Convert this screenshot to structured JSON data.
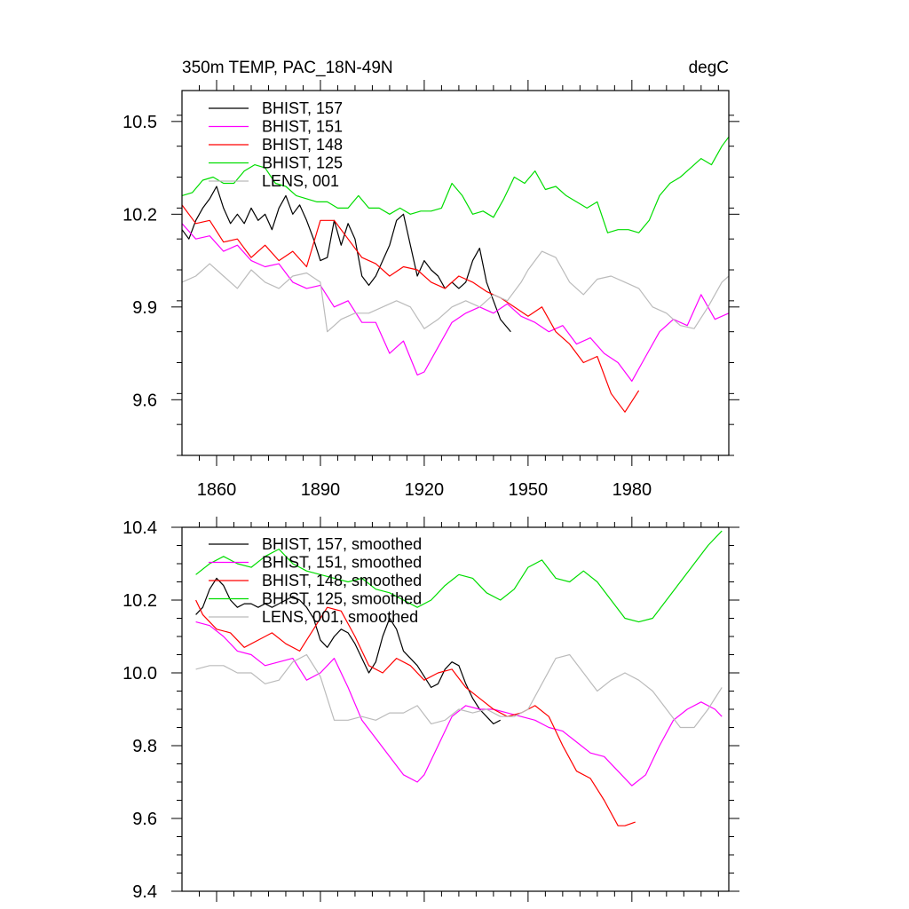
{
  "chart_data": [
    {
      "type": "line",
      "title": "350m TEMP, PAC_18N-49N",
      "title_right": "degC",
      "xlim": [
        1850,
        2008
      ],
      "ylim": [
        9.42,
        10.6
      ],
      "xticks": [
        1860,
        1890,
        1920,
        1950,
        1980
      ],
      "xtick_labels": [
        "1860",
        "1890",
        "1920",
        "1950",
        "1980"
      ],
      "yticks": [
        9.6,
        9.9,
        10.2,
        10.5
      ],
      "ytick_labels": [
        "9.6",
        "9.9",
        "10.2",
        "10.5"
      ],
      "legend_position": "top-left",
      "series": [
        {
          "name": "BHIST, 157",
          "color": "#000000",
          "x": [
            1850,
            1852,
            1854,
            1856,
            1858,
            1860,
            1862,
            1864,
            1866,
            1868,
            1870,
            1872,
            1874,
            1876,
            1878,
            1880,
            1882,
            1884,
            1886,
            1888,
            1890,
            1892,
            1894,
            1896,
            1898,
            1900,
            1902,
            1904,
            1906,
            1908,
            1910,
            1912,
            1914,
            1916,
            1918,
            1920,
            1922,
            1924,
            1926,
            1928,
            1930,
            1932,
            1934,
            1936,
            1938,
            1940,
            1942,
            1945
          ],
          "y": [
            10.15,
            10.12,
            10.18,
            10.22,
            10.25,
            10.29,
            10.22,
            10.17,
            10.2,
            10.17,
            10.22,
            10.18,
            10.2,
            10.15,
            10.22,
            10.26,
            10.2,
            10.23,
            10.18,
            10.12,
            10.05,
            10.06,
            10.18,
            10.1,
            10.17,
            10.12,
            10.0,
            9.97,
            10.0,
            10.05,
            10.1,
            10.18,
            10.2,
            10.1,
            10.0,
            10.05,
            10.02,
            10.0,
            9.96,
            9.98,
            9.96,
            9.98,
            10.05,
            10.09,
            9.98,
            9.92,
            9.86,
            9.82
          ]
        },
        {
          "name": "BHIST, 151",
          "color": "#ff00ff",
          "x": [
            1850,
            1854,
            1858,
            1862,
            1866,
            1870,
            1874,
            1878,
            1882,
            1886,
            1890,
            1894,
            1898,
            1902,
            1906,
            1910,
            1914,
            1918,
            1920,
            1924,
            1928,
            1932,
            1936,
            1940,
            1944,
            1948,
            1952,
            1956,
            1960,
            1964,
            1968,
            1972,
            1976,
            1980,
            1984,
            1988,
            1992,
            1996,
            2000,
            2004,
            2008
          ],
          "y": [
            10.17,
            10.12,
            10.13,
            10.08,
            10.1,
            10.05,
            10.03,
            10.04,
            9.98,
            9.96,
            9.97,
            9.9,
            9.92,
            9.85,
            9.85,
            9.75,
            9.79,
            9.68,
            9.69,
            9.77,
            9.85,
            9.88,
            9.9,
            9.88,
            9.91,
            9.87,
            9.85,
            9.82,
            9.84,
            9.78,
            9.8,
            9.75,
            9.72,
            9.66,
            9.74,
            9.82,
            9.86,
            9.84,
            9.94,
            9.86,
            9.88
          ]
        },
        {
          "name": "BHIST, 148",
          "color": "#ff0000",
          "x": [
            1850,
            1854,
            1858,
            1862,
            1866,
            1870,
            1874,
            1878,
            1882,
            1886,
            1890,
            1894,
            1898,
            1902,
            1906,
            1910,
            1914,
            1918,
            1922,
            1926,
            1930,
            1934,
            1938,
            1942,
            1946,
            1950,
            1954,
            1958,
            1962,
            1966,
            1970,
            1974,
            1978,
            1982
          ],
          "y": [
            10.23,
            10.17,
            10.18,
            10.11,
            10.12,
            10.06,
            10.1,
            10.05,
            10.08,
            10.03,
            10.18,
            10.18,
            10.12,
            10.06,
            10.04,
            10.0,
            10.03,
            10.02,
            9.98,
            9.96,
            10.0,
            9.98,
            9.95,
            9.93,
            9.9,
            9.87,
            9.9,
            9.82,
            9.78,
            9.72,
            9.74,
            9.62,
            9.56,
            9.63
          ]
        },
        {
          "name": "BHIST, 125",
          "color": "#00dd00",
          "x": [
            1850,
            1853,
            1856,
            1859,
            1862,
            1865,
            1868,
            1871,
            1874,
            1877,
            1880,
            1883,
            1886,
            1889,
            1892,
            1895,
            1898,
            1901,
            1904,
            1907,
            1910,
            1913,
            1916,
            1919,
            1922,
            1925,
            1928,
            1931,
            1934,
            1937,
            1940,
            1943,
            1946,
            1949,
            1952,
            1955,
            1958,
            1961,
            1964,
            1967,
            1970,
            1973,
            1976,
            1979,
            1982,
            1985,
            1988,
            1991,
            1994,
            1997,
            2000,
            2003,
            2006,
            2008
          ],
          "y": [
            10.26,
            10.27,
            10.31,
            10.32,
            10.3,
            10.3,
            10.34,
            10.36,
            10.35,
            10.3,
            10.29,
            10.26,
            10.25,
            10.24,
            10.24,
            10.22,
            10.22,
            10.26,
            10.22,
            10.22,
            10.2,
            10.22,
            10.2,
            10.21,
            10.21,
            10.22,
            10.3,
            10.26,
            10.2,
            10.21,
            10.19,
            10.25,
            10.32,
            10.3,
            10.34,
            10.28,
            10.29,
            10.26,
            10.24,
            10.22,
            10.24,
            10.14,
            10.15,
            10.15,
            10.14,
            10.18,
            10.26,
            10.3,
            10.32,
            10.35,
            10.38,
            10.36,
            10.42,
            10.45
          ]
        },
        {
          "name": "LENS, 001",
          "color": "#bbbbbb",
          "x": [
            1850,
            1854,
            1858,
            1862,
            1866,
            1870,
            1874,
            1878,
            1882,
            1886,
            1890,
            1892,
            1896,
            1900,
            1904,
            1908,
            1912,
            1916,
            1920,
            1924,
            1928,
            1932,
            1936,
            1940,
            1944,
            1948,
            1950,
            1954,
            1958,
            1962,
            1966,
            1970,
            1974,
            1978,
            1982,
            1986,
            1990,
            1994,
            1998,
            2002,
            2006,
            2008
          ],
          "y": [
            9.98,
            10.0,
            10.04,
            10.0,
            9.96,
            10.02,
            9.98,
            9.96,
            10.0,
            10.01,
            9.98,
            9.82,
            9.86,
            9.88,
            9.88,
            9.9,
            9.92,
            9.9,
            9.83,
            9.86,
            9.9,
            9.92,
            9.9,
            9.94,
            9.92,
            9.98,
            10.02,
            10.08,
            10.06,
            9.98,
            9.94,
            9.99,
            10.0,
            9.98,
            9.96,
            9.9,
            9.88,
            9.84,
            9.83,
            9.9,
            9.98,
            10.0
          ]
        }
      ]
    },
    {
      "type": "line",
      "title": "",
      "xlim": [
        1850,
        2008
      ],
      "ylim": [
        9.4,
        10.4
      ],
      "xticks": [
        1860,
        1890,
        1920,
        1950,
        1980
      ],
      "yticks": [
        9.4,
        9.6,
        9.8,
        10.0,
        10.2,
        10.4
      ],
      "ytick_labels": [
        "9.4",
        "9.6",
        "9.8",
        "10.0",
        "10.2",
        "10.4"
      ],
      "legend_position": "top-left",
      "series": [
        {
          "name": "BHIST, 157, smoothed",
          "color": "#000000",
          "x": [
            1854,
            1856,
            1858,
            1860,
            1862,
            1864,
            1866,
            1868,
            1870,
            1872,
            1874,
            1876,
            1878,
            1880,
            1882,
            1884,
            1886,
            1888,
            1890,
            1892,
            1894,
            1896,
            1898,
            1900,
            1902,
            1904,
            1906,
            1908,
            1910,
            1912,
            1914,
            1916,
            1918,
            1920,
            1922,
            1924,
            1926,
            1928,
            1930,
            1932,
            1934,
            1936,
            1938,
            1940,
            1942
          ],
          "y": [
            10.16,
            10.18,
            10.23,
            10.26,
            10.24,
            10.2,
            10.18,
            10.19,
            10.19,
            10.18,
            10.19,
            10.18,
            10.19,
            10.2,
            10.21,
            10.2,
            10.18,
            10.15,
            10.09,
            10.07,
            10.1,
            10.12,
            10.11,
            10.08,
            10.04,
            10.0,
            10.03,
            10.1,
            10.15,
            10.12,
            10.06,
            10.04,
            10.02,
            9.99,
            9.96,
            9.97,
            10.01,
            10.03,
            10.02,
            9.97,
            9.93,
            9.9,
            9.88,
            9.86,
            9.87
          ]
        },
        {
          "name": "BHIST, 151, smoothed",
          "color": "#ff00ff",
          "x": [
            1854,
            1858,
            1862,
            1866,
            1870,
            1874,
            1878,
            1882,
            1886,
            1890,
            1894,
            1898,
            1902,
            1906,
            1910,
            1914,
            1918,
            1920,
            1924,
            1928,
            1932,
            1936,
            1940,
            1944,
            1948,
            1952,
            1956,
            1960,
            1964,
            1968,
            1972,
            1976,
            1980,
            1984,
            1988,
            1992,
            1996,
            2000,
            2004,
            2006
          ],
          "y": [
            10.14,
            10.13,
            10.1,
            10.06,
            10.05,
            10.02,
            10.03,
            10.04,
            9.98,
            10.0,
            10.04,
            9.96,
            9.87,
            9.82,
            9.77,
            9.72,
            9.7,
            9.72,
            9.8,
            9.88,
            9.91,
            9.9,
            9.9,
            9.89,
            9.88,
            9.87,
            9.85,
            9.84,
            9.81,
            9.78,
            9.77,
            9.73,
            9.69,
            9.72,
            9.8,
            9.87,
            9.9,
            9.92,
            9.9,
            9.88
          ]
        },
        {
          "name": "BHIST, 148, smoothed",
          "color": "#ff0000",
          "x": [
            1854,
            1856,
            1860,
            1864,
            1868,
            1872,
            1876,
            1880,
            1884,
            1888,
            1892,
            1896,
            1900,
            1904,
            1908,
            1912,
            1916,
            1920,
            1924,
            1928,
            1932,
            1936,
            1940,
            1944,
            1948,
            1952,
            1956,
            1960,
            1964,
            1968,
            1972,
            1976,
            1978,
            1981
          ],
          "y": [
            10.2,
            10.16,
            10.12,
            10.11,
            10.07,
            10.09,
            10.11,
            10.08,
            10.06,
            10.12,
            10.18,
            10.17,
            10.1,
            10.02,
            10.0,
            10.04,
            10.02,
            9.98,
            10.0,
            10.01,
            9.96,
            9.93,
            9.9,
            9.88,
            9.89,
            9.91,
            9.88,
            9.8,
            9.73,
            9.71,
            9.65,
            9.58,
            9.58,
            9.59
          ]
        },
        {
          "name": "BHIST, 125, smoothed",
          "color": "#00dd00",
          "x": [
            1854,
            1858,
            1862,
            1866,
            1870,
            1874,
            1878,
            1882,
            1886,
            1890,
            1894,
            1898,
            1902,
            1906,
            1910,
            1914,
            1918,
            1922,
            1926,
            1930,
            1934,
            1938,
            1942,
            1946,
            1950,
            1954,
            1958,
            1962,
            1966,
            1970,
            1974,
            1978,
            1982,
            1986,
            1990,
            1994,
            1998,
            2002,
            2006
          ],
          "y": [
            10.27,
            10.3,
            10.32,
            10.3,
            10.29,
            10.32,
            10.34,
            10.3,
            10.28,
            10.27,
            10.26,
            10.25,
            10.26,
            10.23,
            10.22,
            10.2,
            10.18,
            10.2,
            10.24,
            10.27,
            10.26,
            10.22,
            10.2,
            10.23,
            10.29,
            10.31,
            10.26,
            10.25,
            10.28,
            10.25,
            10.2,
            10.15,
            10.14,
            10.15,
            10.2,
            10.25,
            10.3,
            10.35,
            10.39
          ]
        },
        {
          "name": "LENS, 001, smoothed",
          "color": "#bbbbbb",
          "x": [
            1854,
            1858,
            1862,
            1866,
            1870,
            1874,
            1878,
            1882,
            1886,
            1890,
            1894,
            1898,
            1902,
            1906,
            1910,
            1914,
            1918,
            1922,
            1926,
            1930,
            1934,
            1938,
            1942,
            1946,
            1950,
            1954,
            1958,
            1962,
            1966,
            1970,
            1974,
            1978,
            1982,
            1986,
            1990,
            1994,
            1998,
            2002,
            2006
          ],
          "y": [
            10.01,
            10.02,
            10.02,
            10.0,
            10.0,
            9.97,
            9.98,
            10.03,
            10.05,
            9.99,
            9.87,
            9.87,
            9.88,
            9.87,
            9.89,
            9.89,
            9.91,
            9.86,
            9.87,
            9.9,
            9.89,
            9.9,
            9.88,
            9.88,
            9.9,
            9.97,
            10.04,
            10.05,
            10.0,
            9.95,
            9.98,
            10.0,
            9.98,
            9.95,
            9.9,
            9.85,
            9.85,
            9.9,
            9.96
          ]
        }
      ]
    }
  ]
}
